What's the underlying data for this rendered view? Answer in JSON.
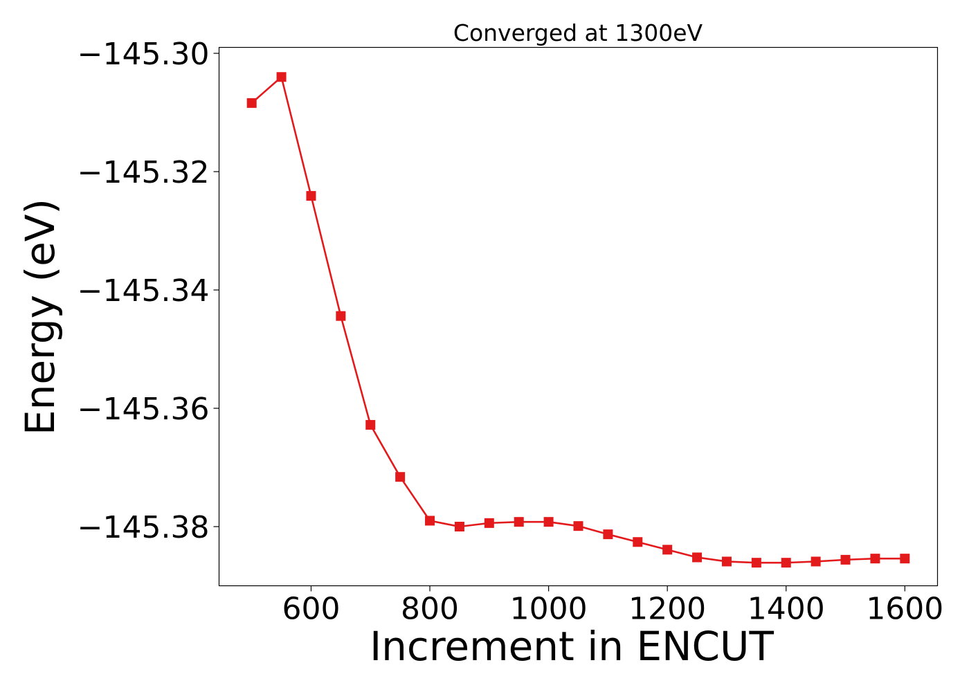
{
  "chart_data": {
    "type": "line",
    "title": "Converged at 1300eV",
    "xlabel": "Increment in ENCUT",
    "ylabel": "Energy (eV)",
    "xlim": [
      445,
      1655
    ],
    "ylim": [
      -145.39,
      -145.299
    ],
    "xticks": [
      600,
      800,
      1000,
      1200,
      1400,
      1600
    ],
    "xtick_labels": [
      "600",
      "800",
      "1000",
      "1200",
      "1400",
      "1600"
    ],
    "yticks": [
      -145.3,
      -145.32,
      -145.34,
      -145.36,
      -145.38
    ],
    "ytick_labels": [
      "−145.30",
      "−145.32",
      "−145.34",
      "−145.36",
      "−145.38"
    ],
    "grid": false,
    "series": [
      {
        "color": "#e31a1c",
        "marker": "square",
        "x": [
          500,
          550,
          600,
          650,
          700,
          750,
          800,
          850,
          900,
          950,
          1000,
          1050,
          1100,
          1150,
          1200,
          1250,
          1300,
          1350,
          1400,
          1450,
          1500,
          1550,
          1600
        ],
        "y": [
          -145.3084,
          -145.304,
          -145.3241,
          -145.3444,
          -145.3628,
          -145.3716,
          -145.379,
          -145.38,
          -145.3794,
          -145.3792,
          -145.3792,
          -145.3799,
          -145.3813,
          -145.3826,
          -145.3839,
          -145.3852,
          -145.3859,
          -145.3861,
          -145.3861,
          -145.3859,
          -145.3856,
          -145.3854,
          -145.3854
        ]
      }
    ]
  }
}
